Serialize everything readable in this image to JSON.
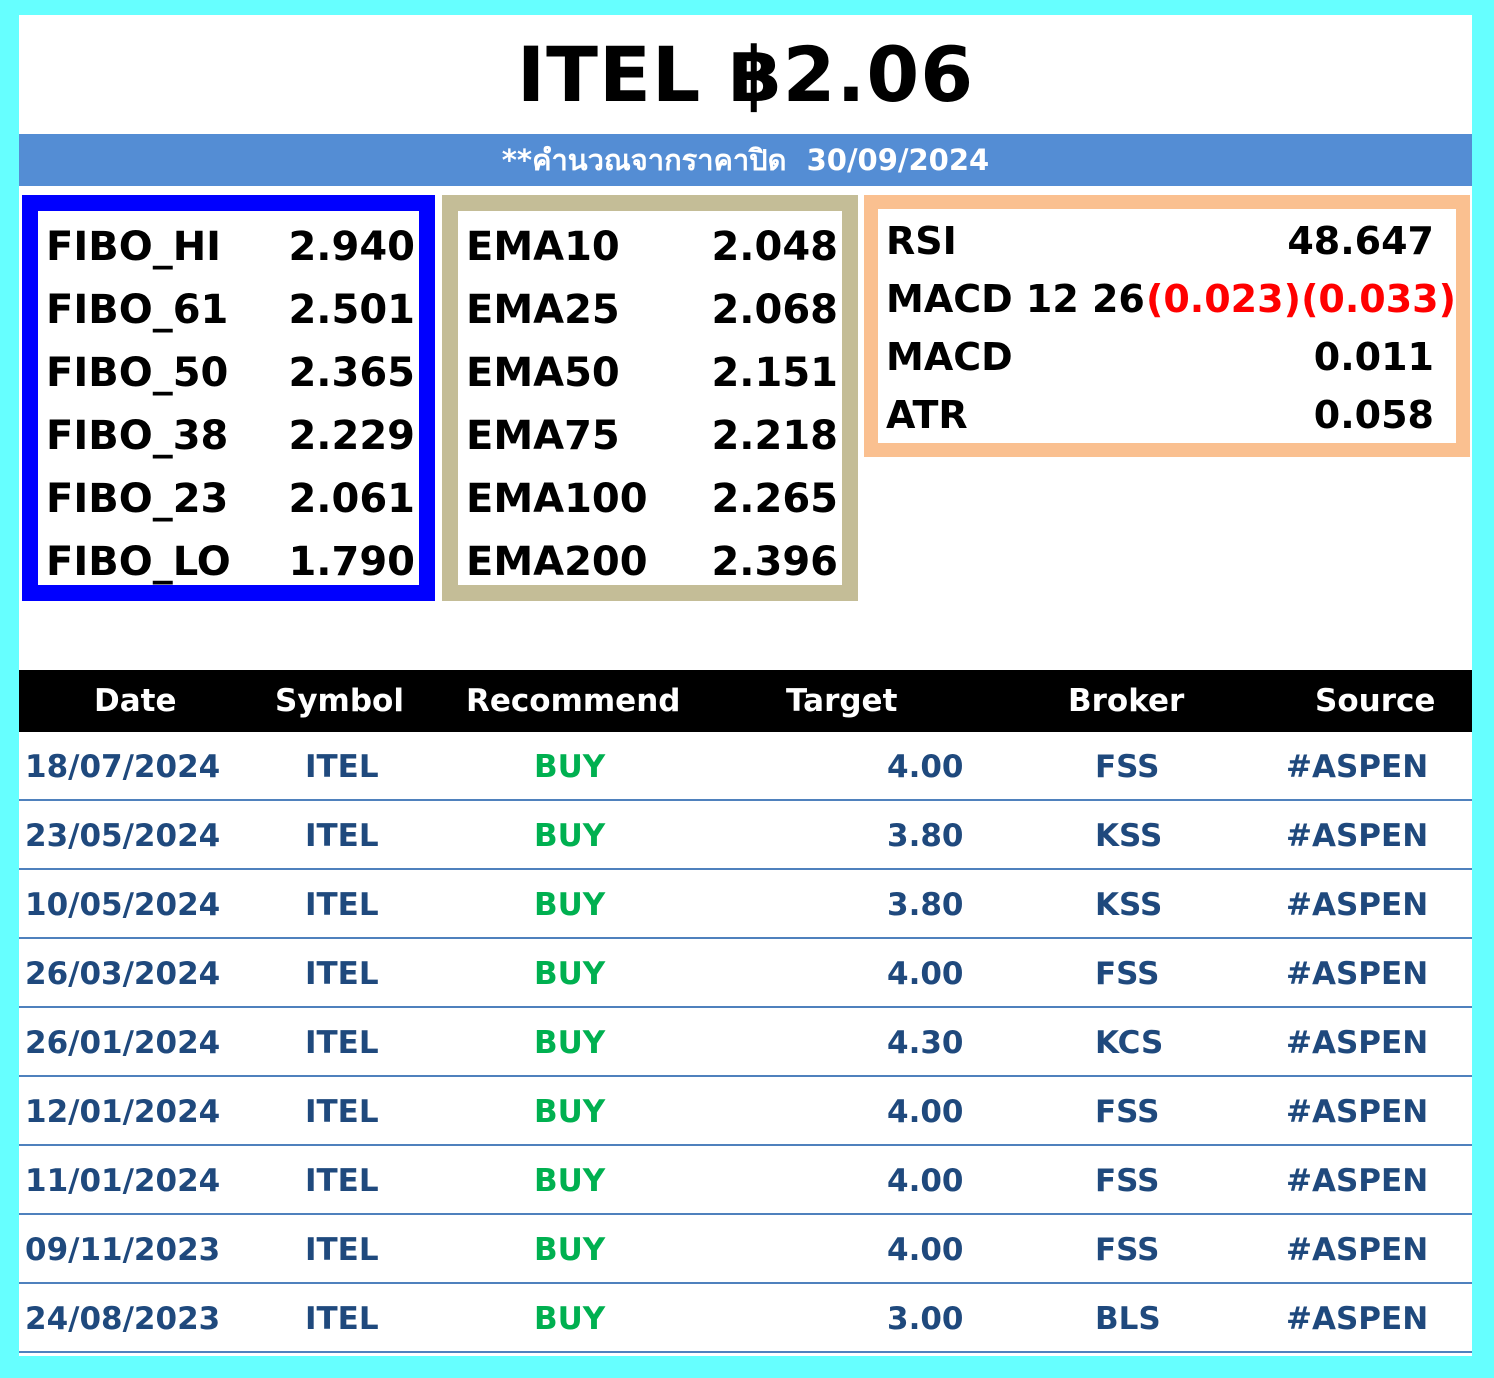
{
  "header": {
    "title": "ITEL ฿2.06",
    "subtitle": "**คำนวณจากราคาปิด  30/09/2024"
  },
  "fibo": [
    {
      "label": "FIBO_HI",
      "value": "2.940"
    },
    {
      "label": "FIBO_61",
      "value": "2.501"
    },
    {
      "label": "FIBO_50",
      "value": "2.365"
    },
    {
      "label": "FIBO_38",
      "value": "2.229"
    },
    {
      "label": "FIBO_23",
      "value": "2.061"
    },
    {
      "label": "FIBO_LO",
      "value": "1.790"
    }
  ],
  "ema": [
    {
      "label": "EMA10",
      "value": "2.048"
    },
    {
      "label": "EMA25",
      "value": "2.068"
    },
    {
      "label": "EMA50",
      "value": "2.151"
    },
    {
      "label": "EMA75",
      "value": "2.218"
    },
    {
      "label": "EMA100",
      "value": "2.265"
    },
    {
      "label": "EMA200",
      "value": "2.396"
    }
  ],
  "oscillators": {
    "rsi": {
      "label": "RSI",
      "value": "48.647"
    },
    "macd_1226": {
      "label": "MACD 12 26",
      "value_a": "(0.023)",
      "value_b": "(0.033)"
    },
    "macd": {
      "label": "MACD",
      "value": "0.011"
    },
    "atr": {
      "label": "ATR",
      "value": "0.058"
    }
  },
  "colors": {
    "page_border": "#66ffff",
    "subtitle_bar": "#548dd4",
    "fibo_border": "#0000ff",
    "ema_border": "#c4bd97",
    "osc_border": "#fac090",
    "negative": "#ff0000",
    "buy": "#00b050",
    "row_text": "#1f497d"
  },
  "table": {
    "headers": [
      "Date",
      "Symbol",
      "Recommend",
      "Target",
      "Broker",
      "Source"
    ],
    "rows": [
      [
        "18/07/2024",
        "ITEL",
        "BUY",
        "4.00",
        "FSS",
        "#ASPEN"
      ],
      [
        "23/05/2024",
        "ITEL",
        "BUY",
        "3.80",
        "KSS",
        "#ASPEN"
      ],
      [
        "10/05/2024",
        "ITEL",
        "BUY",
        "3.80",
        "KSS",
        "#ASPEN"
      ],
      [
        "26/03/2024",
        "ITEL",
        "BUY",
        "4.00",
        "FSS",
        "#ASPEN"
      ],
      [
        "26/01/2024",
        "ITEL",
        "BUY",
        "4.30",
        "KCS",
        "#ASPEN"
      ],
      [
        "12/01/2024",
        "ITEL",
        "BUY",
        "4.00",
        "FSS",
        "#ASPEN"
      ],
      [
        "11/01/2024",
        "ITEL",
        "BUY",
        "4.00",
        "FSS",
        "#ASPEN"
      ],
      [
        "09/11/2023",
        "ITEL",
        "BUY",
        "4.00",
        "FSS",
        "#ASPEN"
      ],
      [
        "24/08/2023",
        "ITEL",
        "BUY",
        "3.00",
        "BLS",
        "#ASPEN"
      ]
    ]
  }
}
